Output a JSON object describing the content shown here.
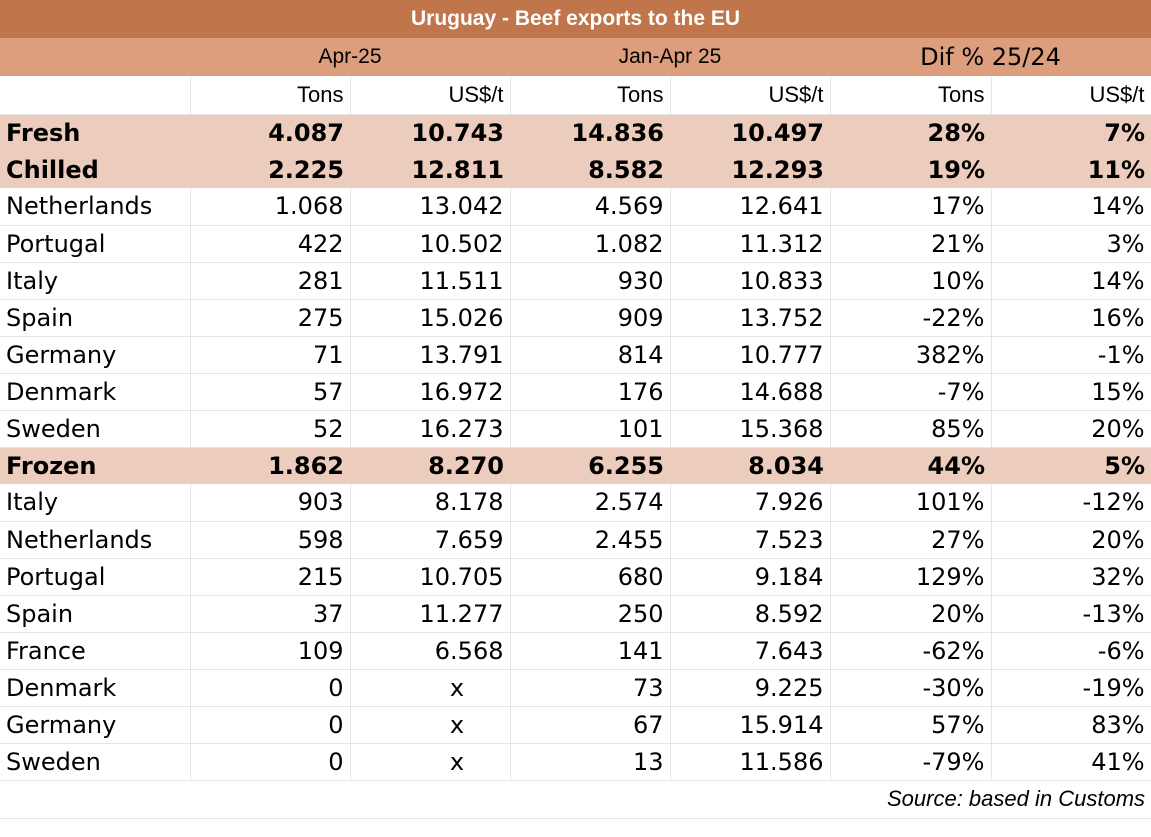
{
  "title": "Uruguay - Beef exports to the EU",
  "period_headers": {
    "apr": "Apr-25",
    "jan_apr": "Jan-Apr 25",
    "dif": "Dif % 25/24"
  },
  "unit_headers": [
    "Tons",
    "US$/t",
    "Tons",
    "US$/t",
    "Tons",
    "US$/t"
  ],
  "rows": [
    {
      "label": "Fresh",
      "values": [
        "4.087",
        "10.743",
        "14.836",
        "10.497",
        "28%",
        "7%"
      ],
      "highlight": true
    },
    {
      "label": "Chilled",
      "values": [
        "2.225",
        "12.811",
        "8.582",
        "12.293",
        "19%",
        "11%"
      ],
      "highlight": true
    },
    {
      "label": "Netherlands",
      "values": [
        "1.068",
        "13.042",
        "4.569",
        "12.641",
        "17%",
        "14%"
      ],
      "highlight": false
    },
    {
      "label": "Portugal",
      "values": [
        "422",
        "10.502",
        "1.082",
        "11.312",
        "21%",
        "3%"
      ],
      "highlight": false
    },
    {
      "label": "Italy",
      "values": [
        "281",
        "11.511",
        "930",
        "10.833",
        "10%",
        "14%"
      ],
      "highlight": false
    },
    {
      "label": "Spain",
      "values": [
        "275",
        "15.026",
        "909",
        "13.752",
        "-22%",
        "16%"
      ],
      "highlight": false
    },
    {
      "label": "Germany",
      "values": [
        "71",
        "13.791",
        "814",
        "10.777",
        "382%",
        "-1%"
      ],
      "highlight": false
    },
    {
      "label": "Denmark",
      "values": [
        "57",
        "16.972",
        "176",
        "14.688",
        "-7%",
        "15%"
      ],
      "highlight": false
    },
    {
      "label": "Sweden",
      "values": [
        "52",
        "16.273",
        "101",
        "15.368",
        "85%",
        "20%"
      ],
      "highlight": false
    },
    {
      "label": "Frozen",
      "values": [
        "1.862",
        "8.270",
        "6.255",
        "8.034",
        "44%",
        "5%"
      ],
      "highlight": true
    },
    {
      "label": "Italy",
      "values": [
        "903",
        "8.178",
        "2.574",
        "7.926",
        "101%",
        "-12%"
      ],
      "highlight": false
    },
    {
      "label": "Netherlands",
      "values": [
        "598",
        "7.659",
        "2.455",
        "7.523",
        "27%",
        "20%"
      ],
      "highlight": false
    },
    {
      "label": "Portugal",
      "values": [
        "215",
        "10.705",
        "680",
        "9.184",
        "129%",
        "32%"
      ],
      "highlight": false
    },
    {
      "label": "Spain",
      "values": [
        "37",
        "11.277",
        "250",
        "8.592",
        "20%",
        "-13%"
      ],
      "highlight": false
    },
    {
      "label": "France",
      "values": [
        "109",
        "6.568",
        "141",
        "7.643",
        "-62%",
        "-6%"
      ],
      "highlight": false
    },
    {
      "label": "Denmark",
      "values": [
        "0",
        "x",
        "73",
        "9.225",
        "-30%",
        "-19%"
      ],
      "highlight": false
    },
    {
      "label": "Germany",
      "values": [
        "0",
        "x",
        "67",
        "15.914",
        "57%",
        "83%"
      ],
      "highlight": false
    },
    {
      "label": "Sweden",
      "values": [
        "0",
        "x",
        "13",
        "11.586",
        "-79%",
        "41%"
      ],
      "highlight": false
    }
  ],
  "source": "Source: based in Customs",
  "colors": {
    "title_bg": "#c0764a",
    "group_bg": "#dc9e7c",
    "highlight_bg": "#ecccbc"
  }
}
